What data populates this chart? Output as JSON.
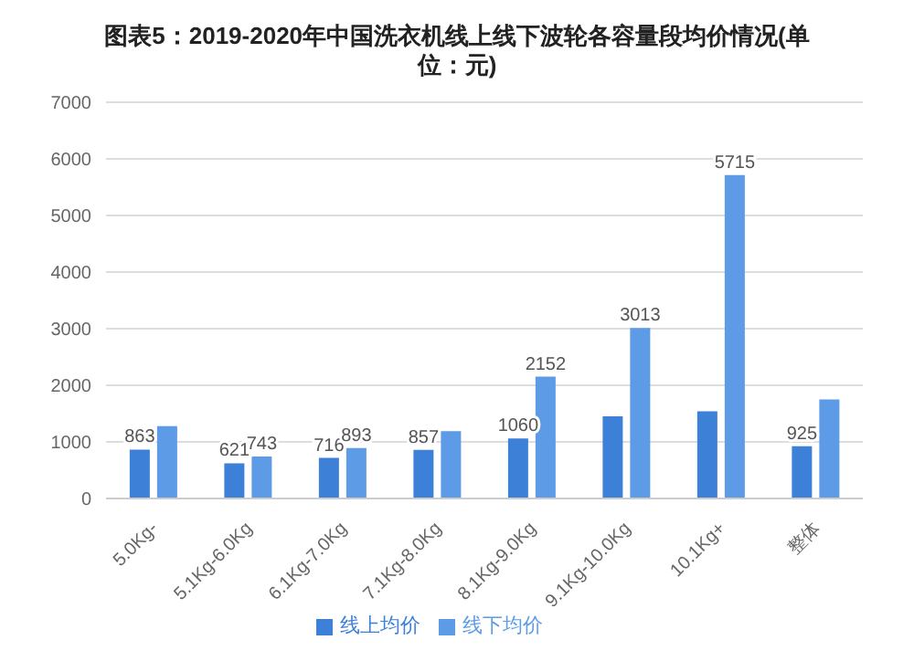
{
  "chart_data": {
    "type": "bar",
    "title": "图表5：2019-2020年中国洗衣机线上线下波轮各容量段均价情况(单位：元)",
    "categories": [
      "5.0Kg-",
      "5.1Kg-6.0Kg",
      "6.1Kg-7.0Kg",
      "7.1Kg-8.0Kg",
      "8.1Kg-9.0Kg",
      "9.1Kg-10.0Kg",
      "10.1Kg+",
      "整体"
    ],
    "series": [
      {
        "name": "线上均价",
        "color": "#3c80d8",
        "values": [
          863,
          621,
          716,
          857,
          1060,
          1450,
          1540,
          925
        ],
        "value_labels": [
          "863",
          "621",
          "716",
          "857",
          "1060",
          null,
          null,
          "925"
        ]
      },
      {
        "name": "线下均价",
        "color": "#5d9be6",
        "values": [
          1280,
          743,
          893,
          1190,
          2152,
          3013,
          5715,
          1750
        ],
        "value_labels": [
          null,
          "743",
          "893",
          null,
          "2152",
          "3013",
          "5715",
          null
        ]
      }
    ],
    "ylim": [
      0,
      7000
    ],
    "yticks": [
      0,
      1000,
      2000,
      3000,
      4000,
      5000,
      6000,
      7000
    ],
    "grid": "y",
    "legend": "bottom"
  }
}
